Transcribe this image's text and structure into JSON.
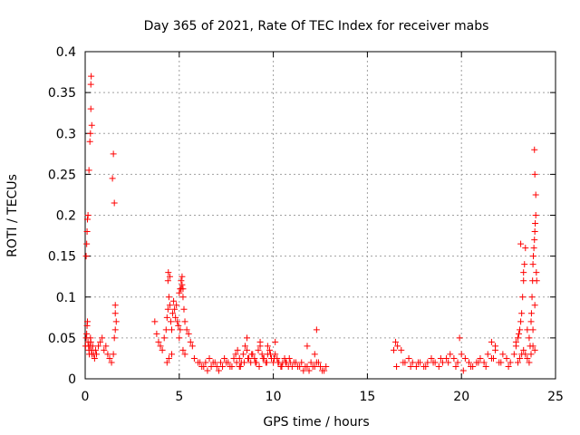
{
  "chart_data": {
    "type": "scatter",
    "title": "Day 365 of 2021, Rate Of TEC Index for receiver mabs",
    "xlabel": "GPS time / hours",
    "ylabel": "ROTI / TECUs",
    "xlim": [
      0,
      25
    ],
    "ylim": [
      0,
      0.4
    ],
    "xticks": [
      "0",
      "5",
      "10",
      "15",
      "20",
      "25"
    ],
    "yticks": [
      "0",
      "0.05",
      "0.1",
      "0.15",
      "0.2",
      "0.25",
      "0.3",
      "0.35",
      "0.4"
    ],
    "grid": true,
    "marker": "+",
    "color": "#ff0000",
    "x": [
      0.02,
      0.05,
      0.08,
      0.1,
      0.12,
      0.15,
      0.18,
      0.2,
      0.22,
      0.25,
      0.28,
      0.3,
      0.33,
      0.36,
      0.4,
      0.45,
      0.5,
      0.55,
      0.6,
      0.7,
      0.8,
      0.9,
      1.0,
      1.1,
      1.2,
      1.3,
      1.4,
      1.5,
      1.55,
      1.6,
      1.65,
      0.05,
      0.08,
      0.1,
      0.12,
      0.15,
      0.2,
      0.25,
      0.28,
      0.3,
      0.3,
      0.32,
      0.35,
      1.45,
      1.5,
      1.55,
      1.6,
      1.6,
      3.7,
      3.8,
      3.9,
      4.0,
      4.1,
      4.2,
      4.3,
      4.35,
      4.4,
      4.45,
      4.5,
      4.55,
      4.6,
      4.65,
      4.7,
      4.75,
      4.8,
      4.85,
      4.9,
      4.95,
      5.0,
      5.05,
      5.1,
      5.15,
      5.2,
      5.25,
      5.3,
      5.4,
      5.5,
      5.6,
      5.7,
      4.4,
      4.42,
      4.5,
      5.0,
      5.05,
      5.1,
      5.15,
      5.2,
      4.45,
      4.6,
      4.35,
      5.2,
      5.3,
      5.8,
      6.0,
      6.2,
      6.4,
      6.6,
      6.8,
      7.0,
      7.2,
      7.4,
      7.6,
      7.8,
      8.0,
      8.1,
      8.2,
      8.3,
      8.4,
      8.5,
      8.6,
      8.7,
      8.8,
      8.9,
      9.0,
      9.1,
      9.2,
      9.3,
      9.4,
      9.5,
      9.6,
      9.7,
      9.8,
      9.9,
      10.0,
      10.1,
      10.2,
      10.3,
      10.4,
      10.5,
      10.6,
      10.7,
      10.8,
      10.9,
      11.0,
      11.2,
      11.4,
      11.6,
      11.8,
      12.0,
      12.2,
      12.4,
      12.6,
      12.8,
      6.1,
      6.3,
      6.5,
      6.7,
      6.9,
      7.1,
      7.3,
      7.5,
      7.7,
      7.9,
      8.05,
      8.25,
      8.45,
      8.65,
      8.85,
      9.05,
      9.25,
      9.45,
      9.65,
      9.85,
      10.05,
      10.25,
      10.45,
      10.65,
      10.85,
      11.1,
      11.3,
      11.5,
      11.7,
      11.9,
      12.1,
      12.3,
      12.5,
      12.7,
      8.2,
      8.6,
      9.3,
      9.7,
      10.1,
      11.8,
      12.2,
      12.3,
      16.4,
      16.5,
      16.6,
      16.8,
      17.0,
      17.2,
      17.4,
      17.6,
      17.8,
      18.0,
      18.2,
      18.4,
      18.6,
      18.8,
      19.0,
      19.2,
      19.4,
      19.6,
      19.8,
      20.0,
      20.2,
      20.4,
      20.6,
      20.8,
      21.0,
      21.2,
      21.4,
      21.6,
      21.8,
      22.0,
      22.2,
      22.4,
      22.6,
      22.8,
      23.0,
      16.55,
      16.9,
      17.3,
      17.7,
      18.1,
      18.5,
      18.9,
      19.3,
      19.7,
      20.1,
      20.5,
      20.9,
      21.3,
      21.7,
      22.1,
      22.5,
      22.9,
      19.9,
      21.6,
      21.8,
      22.9,
      23.0,
      23.05,
      23.1,
      23.15,
      23.2,
      23.25,
      23.3,
      23.35,
      23.4,
      23.5,
      23.6,
      23.65,
      23.7,
      23.72,
      23.75,
      23.78,
      23.8,
      23.82,
      23.85,
      23.88,
      23.9,
      23.92,
      23.95,
      23.98,
      24.0,
      23.1,
      23.2,
      23.3,
      23.4,
      23.5,
      23.6,
      23.7,
      23.8,
      23.9,
      23.15,
      23.3,
      23.8,
      23.9,
      23.88,
      23.9,
      23.95
    ],
    "y": [
      0.04,
      0.05,
      0.055,
      0.065,
      0.07,
      0.045,
      0.04,
      0.035,
      0.03,
      0.04,
      0.05,
      0.045,
      0.035,
      0.03,
      0.04,
      0.03,
      0.025,
      0.035,
      0.03,
      0.04,
      0.045,
      0.05,
      0.035,
      0.04,
      0.03,
      0.025,
      0.02,
      0.03,
      0.05,
      0.06,
      0.07,
      0.15,
      0.165,
      0.18,
      0.195,
      0.2,
      0.255,
      0.29,
      0.3,
      0.33,
      0.36,
      0.37,
      0.31,
      0.245,
      0.275,
      0.215,
      0.08,
      0.09,
      0.07,
      0.055,
      0.045,
      0.04,
      0.035,
      0.05,
      0.06,
      0.075,
      0.085,
      0.1,
      0.09,
      0.07,
      0.06,
      0.08,
      0.095,
      0.085,
      0.075,
      0.09,
      0.07,
      0.065,
      0.05,
      0.06,
      0.11,
      0.115,
      0.1,
      0.085,
      0.07,
      0.06,
      0.055,
      0.045,
      0.04,
      0.12,
      0.13,
      0.125,
      0.105,
      0.11,
      0.12,
      0.125,
      0.11,
      0.025,
      0.03,
      0.02,
      0.035,
      0.03,
      0.025,
      0.02,
      0.015,
      0.02,
      0.025,
      0.02,
      0.015,
      0.02,
      0.025,
      0.02,
      0.015,
      0.03,
      0.035,
      0.025,
      0.02,
      0.03,
      0.04,
      0.035,
      0.025,
      0.02,
      0.03,
      0.025,
      0.02,
      0.035,
      0.04,
      0.03,
      0.025,
      0.02,
      0.03,
      0.035,
      0.025,
      0.02,
      0.03,
      0.025,
      0.02,
      0.015,
      0.02,
      0.025,
      0.02,
      0.015,
      0.02,
      0.015,
      0.02,
      0.015,
      0.01,
      0.015,
      0.02,
      0.015,
      0.02,
      0.01,
      0.015,
      0.02,
      0.015,
      0.01,
      0.015,
      0.02,
      0.01,
      0.015,
      0.02,
      0.015,
      0.025,
      0.02,
      0.015,
      0.02,
      0.025,
      0.03,
      0.02,
      0.015,
      0.025,
      0.02,
      0.03,
      0.025,
      0.02,
      0.015,
      0.02,
      0.025,
      0.02,
      0.015,
      0.02,
      0.015,
      0.01,
      0.015,
      0.02,
      0.015,
      0.01,
      0.015,
      0.05,
      0.045,
      0.04,
      0.045,
      0.04,
      0.03,
      0.06,
      0.035,
      0.045,
      0.04,
      0.035,
      0.02,
      0.025,
      0.02,
      0.015,
      0.02,
      0.015,
      0.02,
      0.025,
      0.02,
      0.015,
      0.02,
      0.025,
      0.03,
      0.025,
      0.02,
      0.03,
      0.025,
      0.02,
      0.015,
      0.02,
      0.025,
      0.02,
      0.03,
      0.025,
      0.035,
      0.02,
      0.03,
      0.025,
      0.02,
      0.03,
      0.02,
      0.015,
      0.02,
      0.015,
      0.02,
      0.015,
      0.02,
      0.025,
      0.02,
      0.015,
      0.01,
      0.015,
      0.02,
      0.015,
      0.025,
      0.02,
      0.015,
      0.04,
      0.05,
      0.045,
      0.04,
      0.045,
      0.05,
      0.055,
      0.06,
      0.07,
      0.08,
      0.1,
      0.12,
      0.14,
      0.16,
      0.06,
      0.05,
      0.04,
      0.07,
      0.08,
      0.1,
      0.12,
      0.14,
      0.15,
      0.16,
      0.17,
      0.18,
      0.19,
      0.2,
      0.13,
      0.12,
      0.025,
      0.03,
      0.035,
      0.03,
      0.025,
      0.02,
      0.03,
      0.04,
      0.035,
      0.165,
      0.13,
      0.06,
      0.09,
      0.28,
      0.25,
      0.225
    ]
  }
}
